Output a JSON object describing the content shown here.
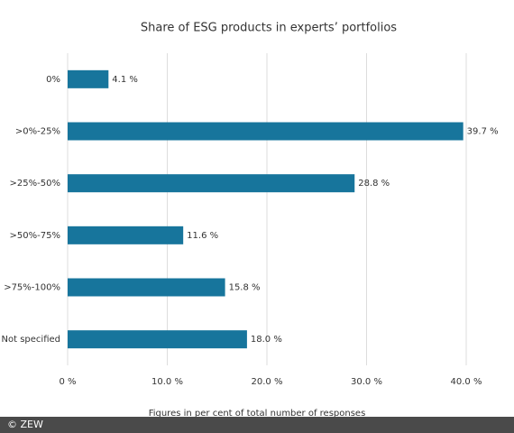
{
  "chart_data": {
    "type": "barh",
    "title": "Share of ESG products in experts’ portfolios",
    "categories": [
      "0%",
      ">0%-25%",
      ">25%-50%",
      ">50%-75%",
      ">75%-100%",
      "Not specified"
    ],
    "values": [
      4.1,
      39.7,
      28.8,
      11.6,
      15.8,
      18.0
    ],
    "value_labels": [
      "4.1 %",
      "39.7 %",
      "28.8 %",
      "11.6 %",
      "15.8 %",
      "18.0 %"
    ],
    "color": "#17759c",
    "xlim": [
      0,
      40
    ],
    "xticks": [
      {
        "value": 0,
        "label": "0 %"
      },
      {
        "value": 10,
        "label": "10.0 %"
      },
      {
        "value": 20,
        "label": "20.0 %"
      },
      {
        "value": 30,
        "label": "30.0 %"
      },
      {
        "value": 40,
        "label": "40.0 %"
      }
    ],
    "xlabel": "Figures in per cent of total number of responses",
    "grid": true
  },
  "footer": "© ZEW"
}
